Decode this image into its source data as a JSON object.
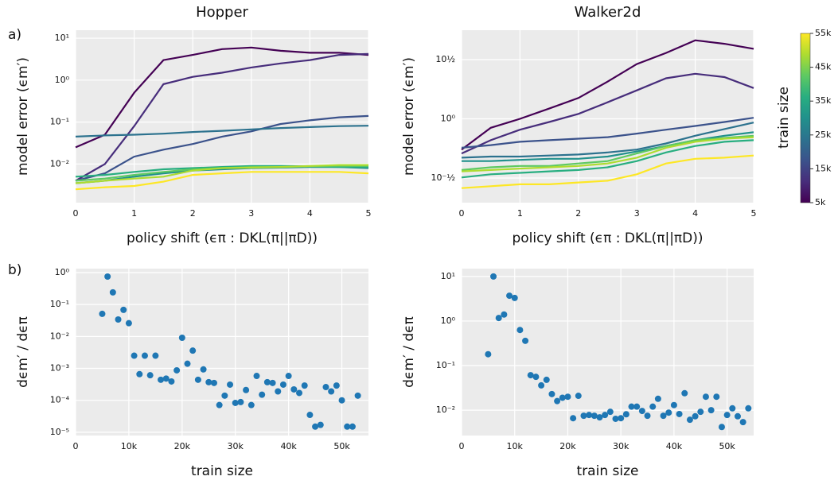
{
  "panel_labels": [
    "a)",
    "b)"
  ],
  "colorbar": {
    "label": "train size",
    "lim": [
      5000,
      55000
    ],
    "ticks": [
      {
        "value": 5000,
        "label": "5k"
      },
      {
        "value": 15000,
        "label": "15k"
      },
      {
        "value": 25000,
        "label": "25k"
      },
      {
        "value": 35000,
        "label": "35k"
      },
      {
        "value": 45000,
        "label": "45k"
      },
      {
        "value": 55000,
        "label": "55k"
      }
    ]
  },
  "chart_data": [
    {
      "type": "line",
      "title": "Hopper",
      "x_label": "policy shift (ϵπ : DKL(π||πD))",
      "y_label": "model error  (ϵm′)",
      "log_y": true,
      "grid": true,
      "x": [
        0,
        0.5,
        1,
        1.5,
        2,
        2.5,
        3,
        3.5,
        4,
        4.5,
        5
      ],
      "xlim": [
        0,
        5
      ],
      "xticks": [
        0,
        1,
        2,
        3,
        4,
        5
      ],
      "ylim": [
        0.0012,
        15.5
      ],
      "yticks": [
        {
          "value": 0.01,
          "label": "10⁻²"
        },
        {
          "value": 0.1,
          "label": "10⁻¹"
        },
        {
          "value": 1,
          "label": "10⁰"
        },
        {
          "value": 10,
          "label": "10¹"
        }
      ],
      "series": [
        {
          "color": "#440154",
          "values": [
            0.025,
            0.05,
            0.5,
            3,
            4,
            5.5,
            6,
            5,
            4.5,
            4.5,
            4
          ]
        },
        {
          "color": "#472d7b",
          "values": [
            0.004,
            0.01,
            0.08,
            0.8,
            1.2,
            1.5,
            2,
            2.5,
            3,
            4,
            4.2
          ]
        },
        {
          "color": "#3b528b",
          "values": [
            0.004,
            0.006,
            0.015,
            0.022,
            0.03,
            0.045,
            0.06,
            0.09,
            0.11,
            0.13,
            0.14
          ]
        },
        {
          "color": "#2c728e",
          "values": [
            0.045,
            0.048,
            0.05,
            0.053,
            0.058,
            0.062,
            0.067,
            0.072,
            0.076,
            0.08,
            0.082
          ]
        },
        {
          "color": "#21918c",
          "values": [
            0.0035,
            0.004,
            0.005,
            0.006,
            0.007,
            0.0075,
            0.008,
            0.0082,
            0.0085,
            0.0085,
            0.008
          ]
        },
        {
          "color": "#28ae80",
          "values": [
            0.005,
            0.0055,
            0.0065,
            0.0075,
            0.008,
            0.0085,
            0.009,
            0.009,
            0.0088,
            0.0085,
            0.0085
          ]
        },
        {
          "color": "#5ec962",
          "values": [
            0.004,
            0.0045,
            0.0055,
            0.0065,
            0.0075,
            0.008,
            0.0085,
            0.0085,
            0.0088,
            0.009,
            0.009
          ]
        },
        {
          "color": "#addc30",
          "values": [
            0.0035,
            0.004,
            0.0045,
            0.005,
            0.007,
            0.008,
            0.0082,
            0.0085,
            0.009,
            0.0095,
            0.0095
          ]
        },
        {
          "color": "#fde725",
          "values": [
            0.0025,
            0.0028,
            0.003,
            0.0038,
            0.0055,
            0.006,
            0.0065,
            0.0065,
            0.0065,
            0.0065,
            0.006
          ]
        }
      ]
    },
    {
      "type": "line",
      "title": "Walker2d",
      "x_label": "policy shift (ϵπ : DKL(π||πD))",
      "y_label": "model error  (ϵm′)",
      "log_y": true,
      "grid": true,
      "x": [
        0,
        0.5,
        1,
        1.5,
        2,
        2.5,
        3,
        3.5,
        4,
        4.5,
        5
      ],
      "xlim": [
        0,
        5
      ],
      "xticks": [
        0,
        1,
        2,
        3,
        4,
        5
      ],
      "ylim": [
        0.196,
        5.6
      ],
      "yticks": [
        {
          "value": 0.316228,
          "label": "10⁻½"
        },
        {
          "value": 1,
          "label": "10⁰"
        },
        {
          "value": 3.162278,
          "label": "10½"
        }
      ],
      "series": [
        {
          "color": "#440154",
          "values": [
            0.55,
            0.84,
            1.0,
            1.22,
            1.5,
            2.06,
            2.9,
            3.6,
            4.6,
            4.3,
            3.9
          ]
        },
        {
          "color": "#472d7b",
          "values": [
            0.51,
            0.66,
            0.81,
            0.94,
            1.1,
            1.38,
            1.74,
            2.2,
            2.4,
            2.25,
            1.82
          ]
        },
        {
          "color": "#3b528b",
          "values": [
            0.57,
            0.6,
            0.64,
            0.66,
            0.68,
            0.7,
            0.75,
            0.81,
            0.87,
            0.94,
            1.02
          ]
        },
        {
          "color": "#2c728e",
          "values": [
            0.47,
            0.48,
            0.48,
            0.49,
            0.5,
            0.52,
            0.55,
            0.62,
            0.72,
            0.82,
            0.93
          ]
        },
        {
          "color": "#21918c",
          "values": [
            0.44,
            0.44,
            0.45,
            0.46,
            0.46,
            0.48,
            0.53,
            0.59,
            0.66,
            0.72,
            0.77
          ]
        },
        {
          "color": "#28ae80",
          "values": [
            0.32,
            0.34,
            0.35,
            0.36,
            0.37,
            0.39,
            0.44,
            0.52,
            0.59,
            0.64,
            0.66
          ]
        },
        {
          "color": "#5ec962",
          "values": [
            0.37,
            0.39,
            0.4,
            0.4,
            0.42,
            0.44,
            0.51,
            0.59,
            0.66,
            0.69,
            0.72
          ]
        },
        {
          "color": "#addc30",
          "values": [
            0.36,
            0.37,
            0.38,
            0.39,
            0.4,
            0.42,
            0.47,
            0.57,
            0.64,
            0.68,
            0.7
          ]
        },
        {
          "color": "#fde725",
          "values": [
            0.26,
            0.27,
            0.28,
            0.28,
            0.29,
            0.3,
            0.34,
            0.42,
            0.46,
            0.47,
            0.49
          ]
        }
      ]
    },
    {
      "type": "scatter",
      "x_label": "train size",
      "y_label": "dϵm′ / dϵπ",
      "log_y": true,
      "grid": true,
      "color": "#1f77b4",
      "xlim": [
        0,
        55000
      ],
      "xticks": [
        0,
        {
          "value": 10000,
          "label": "10k"
        },
        {
          "value": 20000,
          "label": "20k"
        },
        {
          "value": 30000,
          "label": "30k"
        },
        {
          "value": 40000,
          "label": "40k"
        },
        {
          "value": 50000,
          "label": "50k"
        }
      ],
      "ylim": [
        7.9e-06,
        1.33
      ],
      "yticks": [
        {
          "value": 1e-05,
          "label": "10⁻⁵"
        },
        {
          "value": 0.0001,
          "label": "10⁻⁴"
        },
        {
          "value": 0.001,
          "label": "10⁻³"
        },
        {
          "value": 0.01,
          "label": "10⁻²"
        },
        {
          "value": 0.1,
          "label": "10⁻¹"
        },
        {
          "value": 1,
          "label": "10⁰"
        }
      ],
      "x": [
        5000,
        6000,
        7000,
        8000,
        9000,
        10000,
        11000,
        12000,
        13000,
        14000,
        15000,
        16000,
        17000,
        18000,
        19000,
        20000,
        21000,
        22000,
        23000,
        24000,
        25000,
        26000,
        27000,
        28000,
        29000,
        30000,
        31000,
        32000,
        33000,
        34000,
        35000,
        36000,
        37000,
        38000,
        39000,
        40000,
        41000,
        42000,
        43000,
        44000,
        45000,
        46000,
        47000,
        48000,
        49000,
        50000,
        51000,
        52000,
        53000
      ],
      "values": [
        0.051,
        0.75,
        0.24,
        0.034,
        0.068,
        0.026,
        0.0025,
        0.00066,
        0.0025,
        0.00061,
        0.0025,
        0.00044,
        0.00048,
        0.00039,
        0.00087,
        0.0091,
        0.0014,
        0.0036,
        0.00044,
        0.00093,
        0.00037,
        0.00035,
        7.1e-05,
        0.00014,
        0.00031,
        8.3e-05,
        8.8e-05,
        0.00021,
        7.1e-05,
        0.00058,
        0.00015,
        0.00037,
        0.00035,
        0.00019,
        0.00031,
        0.00058,
        0.00022,
        0.00017,
        0.00029,
        3.5e-05,
        1.5e-05,
        1.7e-05,
        0.00026,
        0.00019,
        0.00029,
        0.0001,
        1.5e-05,
        1.5e-05,
        0.00014
      ]
    },
    {
      "type": "scatter",
      "x_label": "train size",
      "y_label": "dϵm′ / dϵπ",
      "log_y": true,
      "grid": true,
      "color": "#1f77b4",
      "xlim": [
        0,
        55000
      ],
      "xticks": [
        0,
        {
          "value": 10000,
          "label": "10k"
        },
        {
          "value": 20000,
          "label": "20k"
        },
        {
          "value": 30000,
          "label": "30k"
        },
        {
          "value": 40000,
          "label": "40k"
        },
        {
          "value": 50000,
          "label": "50k"
        }
      ],
      "ylim": [
        0.0027,
        15
      ],
      "yticks": [
        {
          "value": 0.01,
          "label": "10⁻²"
        },
        {
          "value": 0.1,
          "label": "10⁻¹"
        },
        {
          "value": 1,
          "label": "10⁰"
        },
        {
          "value": 10,
          "label": "10¹"
        }
      ],
      "x": [
        5000,
        6000,
        7000,
        8000,
        9000,
        10000,
        11000,
        12000,
        13000,
        14000,
        15000,
        16000,
        17000,
        18000,
        19000,
        20000,
        21000,
        22000,
        23000,
        24000,
        25000,
        26000,
        27000,
        28000,
        29000,
        30000,
        31000,
        32000,
        33000,
        34000,
        35000,
        36000,
        37000,
        38000,
        39000,
        40000,
        41000,
        42000,
        43000,
        44000,
        45000,
        46000,
        47000,
        48000,
        49000,
        50000,
        51000,
        52000,
        53000,
        54000
      ],
      "values": [
        0.18,
        10,
        1.17,
        1.4,
        3.7,
        3.3,
        0.63,
        0.36,
        0.061,
        0.056,
        0.036,
        0.048,
        0.023,
        0.016,
        0.019,
        0.02,
        0.0066,
        0.021,
        0.0075,
        0.0078,
        0.0075,
        0.0069,
        0.0078,
        0.0092,
        0.0064,
        0.0066,
        0.0081,
        0.012,
        0.012,
        0.0096,
        0.0075,
        0.012,
        0.018,
        0.0075,
        0.0088,
        0.013,
        0.0082,
        0.024,
        0.0061,
        0.0073,
        0.0092,
        0.02,
        0.01,
        0.02,
        0.0042,
        0.0078,
        0.011,
        0.0073,
        0.0054,
        0.011
      ]
    }
  ]
}
